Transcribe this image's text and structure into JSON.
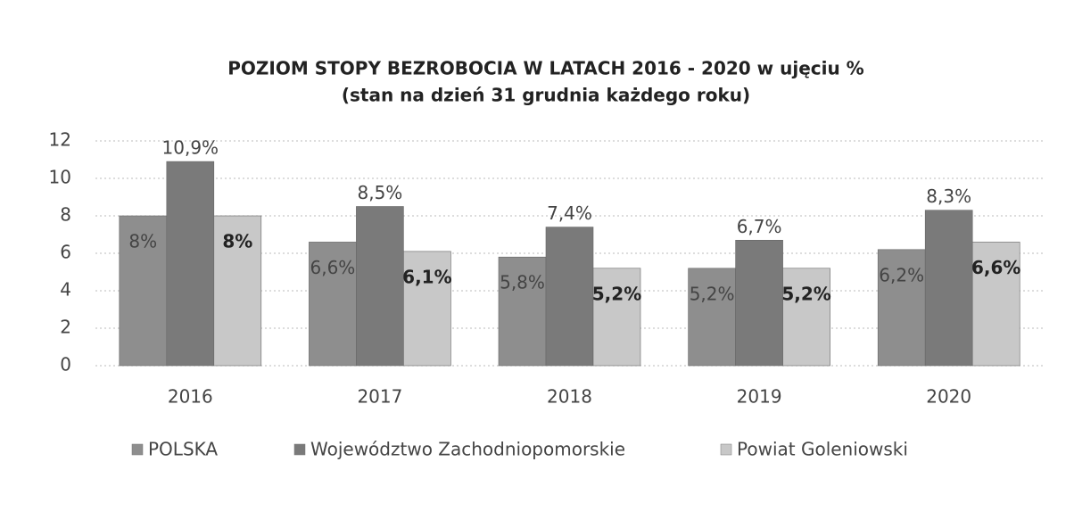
{
  "chart_data": {
    "type": "bar",
    "title": "POZIOM STOPY BEZROBOCIA W LATACH 2016 - 2020 w ujęciu %",
    "subtitle": "(stan na dzień 31 grudnia każdego roku)",
    "categories": [
      "2016",
      "2017",
      "2018",
      "2019",
      "2020"
    ],
    "series": [
      {
        "name": "POLSKA",
        "color": "#8e8e8e",
        "values": [
          8,
          6.6,
          5.8,
          5.2,
          6.2
        ],
        "value_labels": [
          "8%",
          "6,6%",
          "5,8%",
          "5,2%",
          "6,2%"
        ]
      },
      {
        "name": "Województwo Zachodniopomorskie",
        "color": "#7a7a7a",
        "values": [
          10.9,
          8.5,
          7.4,
          6.7,
          8.3
        ],
        "value_labels": [
          "10,9%",
          "8,5%",
          "7,4%",
          "6,7%",
          "8,3%"
        ]
      },
      {
        "name": "Powiat Goleniowski",
        "color": "#c8c8c8",
        "values": [
          8,
          6.1,
          5.2,
          5.2,
          6.6
        ],
        "value_labels": [
          "8%",
          "6,1%",
          "5,2%",
          "5,2%",
          "6,6%"
        ]
      }
    ],
    "ylim": [
      0,
      12
    ],
    "yticks": [
      0,
      2,
      4,
      6,
      8,
      10,
      12
    ],
    "grid": true,
    "legend": "bottom"
  }
}
